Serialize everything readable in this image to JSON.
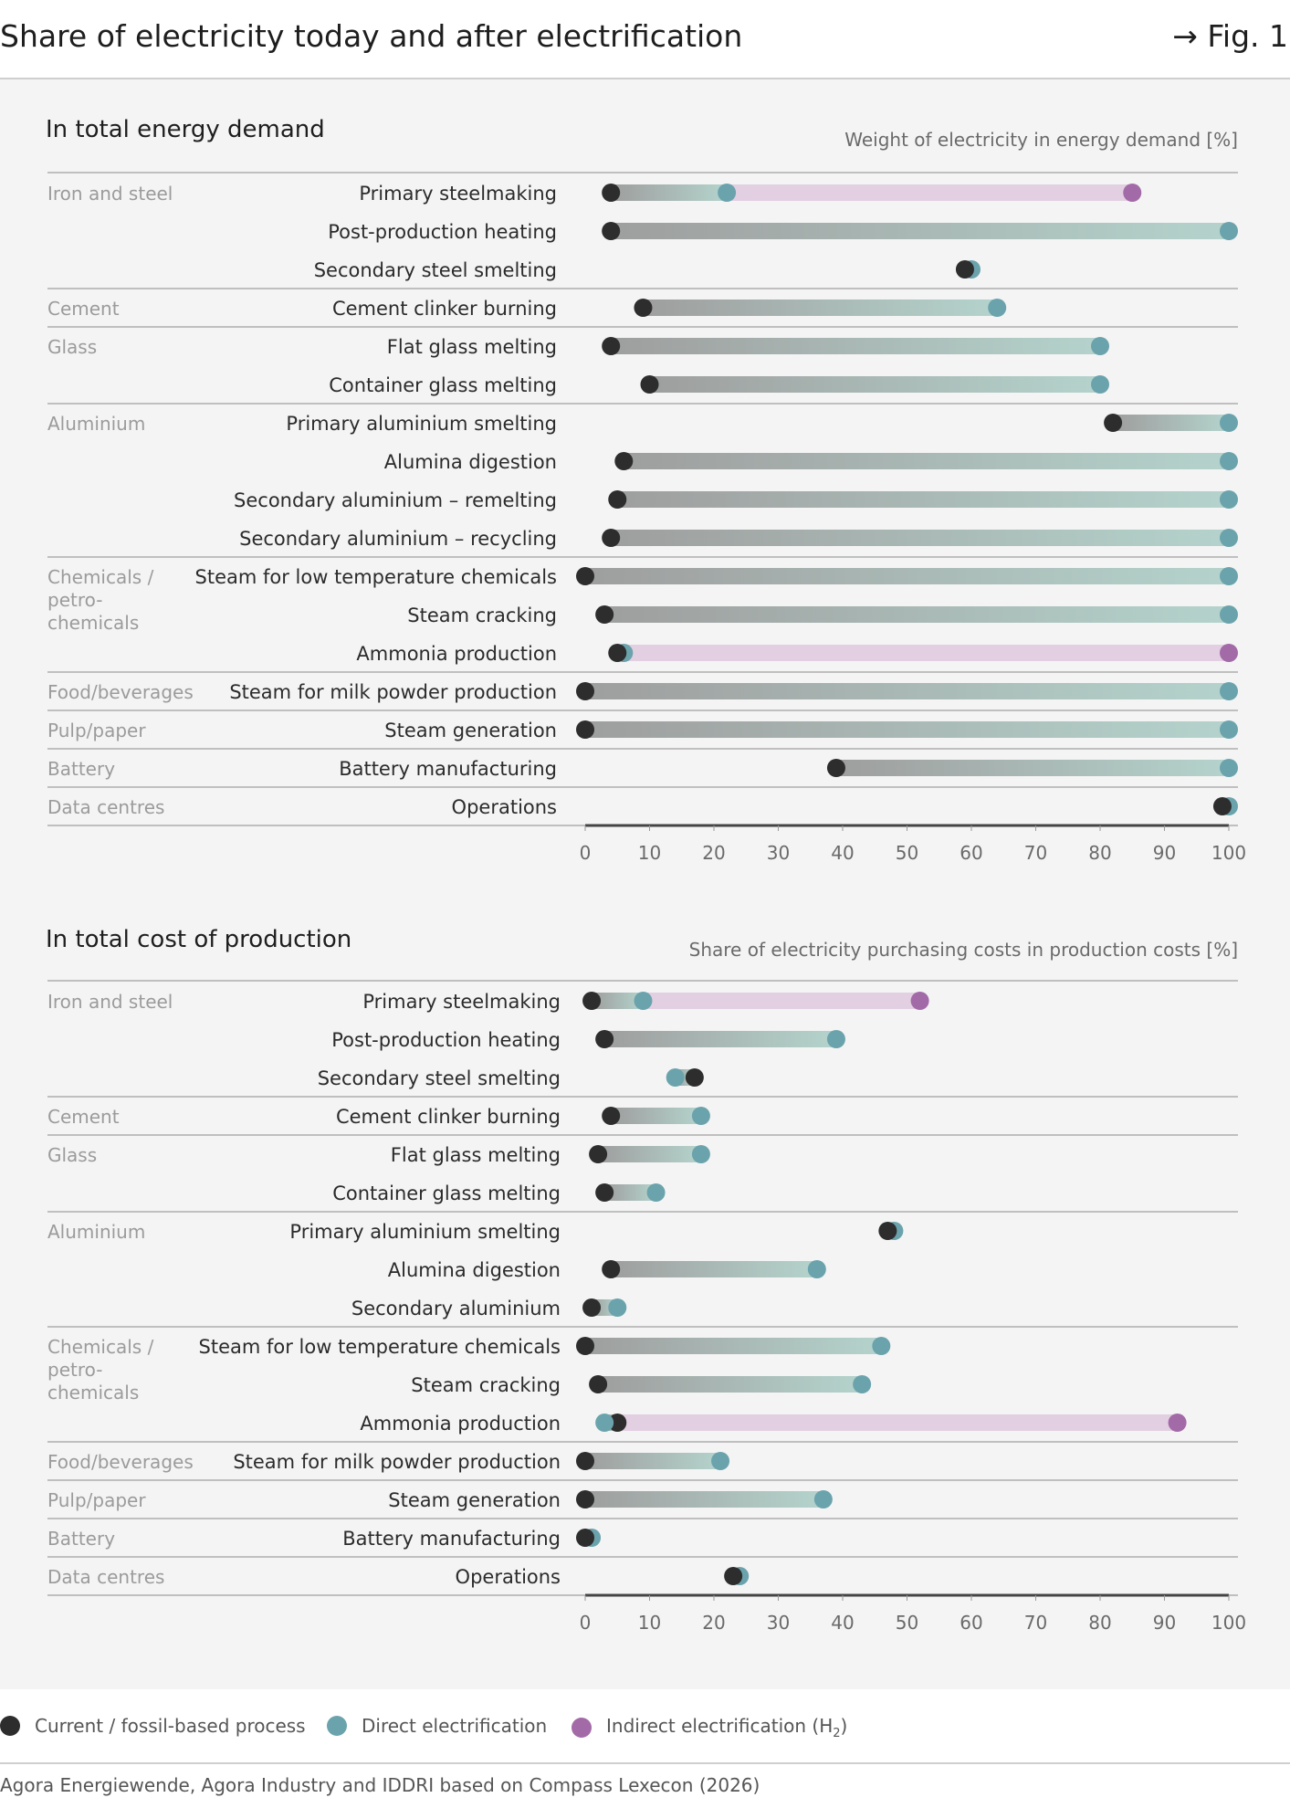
{
  "header": {
    "title": "Share of electricity today and after electrification",
    "figure_ref": "→ Fig. 1"
  },
  "colors": {
    "current": "#2d2d2d",
    "direct": "#6ba3ad",
    "indirect": "#a36aa8",
    "direct_bar": "#b4d3cc",
    "fossil_bar": "#9e9e9e",
    "indirect_bar": "#e2cfe1",
    "label_gray": "#9b9b9b",
    "divider": "#bfbfbf",
    "panel_bg": "#f4f4f4"
  },
  "legend": {
    "current": "Current / fossil-based process",
    "direct": "Direct electrification",
    "indirect_prefix": "Indirect electrification (H",
    "indirect_sub": "2",
    "indirect_suffix": ")"
  },
  "source": "Agora Energiewende, Agora Industry and IDDRI based on Compass Lexecon (2026)",
  "chart_data": [
    {
      "type": "dumbbell",
      "title": "In total energy demand",
      "unit_label": "Weight of electricity in energy demand [%]",
      "xlim": [
        0,
        100
      ],
      "ticks": [
        0,
        10,
        20,
        30,
        40,
        50,
        60,
        70,
        80,
        90,
        100
      ],
      "groups": [
        {
          "sector": "Iron and steel",
          "rows": [
            {
              "process": "Primary steelmaking",
              "current": 4,
              "direct": 22,
              "indirect": 85
            },
            {
              "process": "Post-production heating",
              "current": 4,
              "direct": 100
            },
            {
              "process": "Secondary steel smelting",
              "current": 59,
              "direct": 60
            }
          ]
        },
        {
          "sector": "Cement",
          "rows": [
            {
              "process": "Cement clinker burning",
              "current": 9,
              "direct": 64
            }
          ]
        },
        {
          "sector": "Glass",
          "rows": [
            {
              "process": "Flat glass melting",
              "current": 4,
              "direct": 80
            },
            {
              "process": "Container glass melting",
              "current": 10,
              "direct": 80
            }
          ]
        },
        {
          "sector": "Aluminium",
          "rows": [
            {
              "process": "Primary aluminium smelting",
              "current": 82,
              "direct": 100
            },
            {
              "process": "Alumina digestion",
              "current": 6,
              "direct": 100
            },
            {
              "process": "Secondary aluminium – remelting",
              "current": 5,
              "direct": 100
            },
            {
              "process": "Secondary aluminium – recycling",
              "current": 4,
              "direct": 100
            }
          ]
        },
        {
          "sector": "Chemicals / petro-chemicals",
          "rows": [
            {
              "process": "Steam for low temperature chemicals",
              "current": 0,
              "direct": 100
            },
            {
              "process": "Steam cracking",
              "current": 3,
              "direct": 100
            },
            {
              "process": "Ammonia production",
              "current": 5,
              "direct": 6,
              "indirect": 100
            }
          ]
        },
        {
          "sector": "Food/beverages",
          "rows": [
            {
              "process": "Steam for milk powder production",
              "current": 0,
              "direct": 100
            }
          ]
        },
        {
          "sector": "Pulp/paper",
          "rows": [
            {
              "process": "Steam generation",
              "current": 0,
              "direct": 100
            }
          ]
        },
        {
          "sector": "Battery",
          "rows": [
            {
              "process": "Battery manufacturing",
              "current": 39,
              "direct": 100
            }
          ]
        },
        {
          "sector": "Data centres",
          "rows": [
            {
              "process": "Operations",
              "current": 99,
              "direct": 100
            }
          ]
        }
      ]
    },
    {
      "type": "dumbbell",
      "title": "In total cost of production",
      "unit_label": "Share of electricity purchasing costs in production costs [%]",
      "xlim": [
        0,
        100
      ],
      "ticks": [
        0,
        10,
        20,
        30,
        40,
        50,
        60,
        70,
        80,
        90,
        100
      ],
      "groups": [
        {
          "sector": "Iron and steel",
          "rows": [
            {
              "process": "Primary steelmaking",
              "current": 1,
              "direct": 9,
              "indirect": 52
            },
            {
              "process": "Post-production heating",
              "current": 3,
              "direct": 39
            },
            {
              "process": "Secondary steel smelting",
              "current": 17,
              "direct": 14
            }
          ]
        },
        {
          "sector": "Cement",
          "rows": [
            {
              "process": "Cement clinker burning",
              "current": 4,
              "direct": 18
            }
          ]
        },
        {
          "sector": "Glass",
          "rows": [
            {
              "process": "Flat glass melting",
              "current": 2,
              "direct": 18
            },
            {
              "process": "Container glass melting",
              "current": 3,
              "direct": 11
            }
          ]
        },
        {
          "sector": "Aluminium",
          "rows": [
            {
              "process": "Primary aluminium smelting",
              "current": 47,
              "direct": 48
            },
            {
              "process": "Alumina digestion",
              "current": 4,
              "direct": 36
            },
            {
              "process": "Secondary aluminium",
              "current": 1,
              "direct": 5
            }
          ]
        },
        {
          "sector": "Chemicals / petro-chemicals",
          "rows": [
            {
              "process": "Steam for low temperature chemicals",
              "current": 0,
              "direct": 46
            },
            {
              "process": "Steam cracking",
              "current": 2,
              "direct": 43
            },
            {
              "process": "Ammonia production",
              "current": 5,
              "direct": 3,
              "indirect": 92
            }
          ]
        },
        {
          "sector": "Food/beverages",
          "rows": [
            {
              "process": "Steam for milk powder production",
              "current": 0,
              "direct": 21
            }
          ]
        },
        {
          "sector": "Pulp/paper",
          "rows": [
            {
              "process": "Steam generation",
              "current": 0,
              "direct": 37
            }
          ]
        },
        {
          "sector": "Battery",
          "rows": [
            {
              "process": "Battery manufacturing",
              "current": 0,
              "direct": 1
            }
          ]
        },
        {
          "sector": "Data centres",
          "rows": [
            {
              "process": "Operations",
              "current": 23,
              "direct": 24
            }
          ]
        }
      ]
    }
  ]
}
